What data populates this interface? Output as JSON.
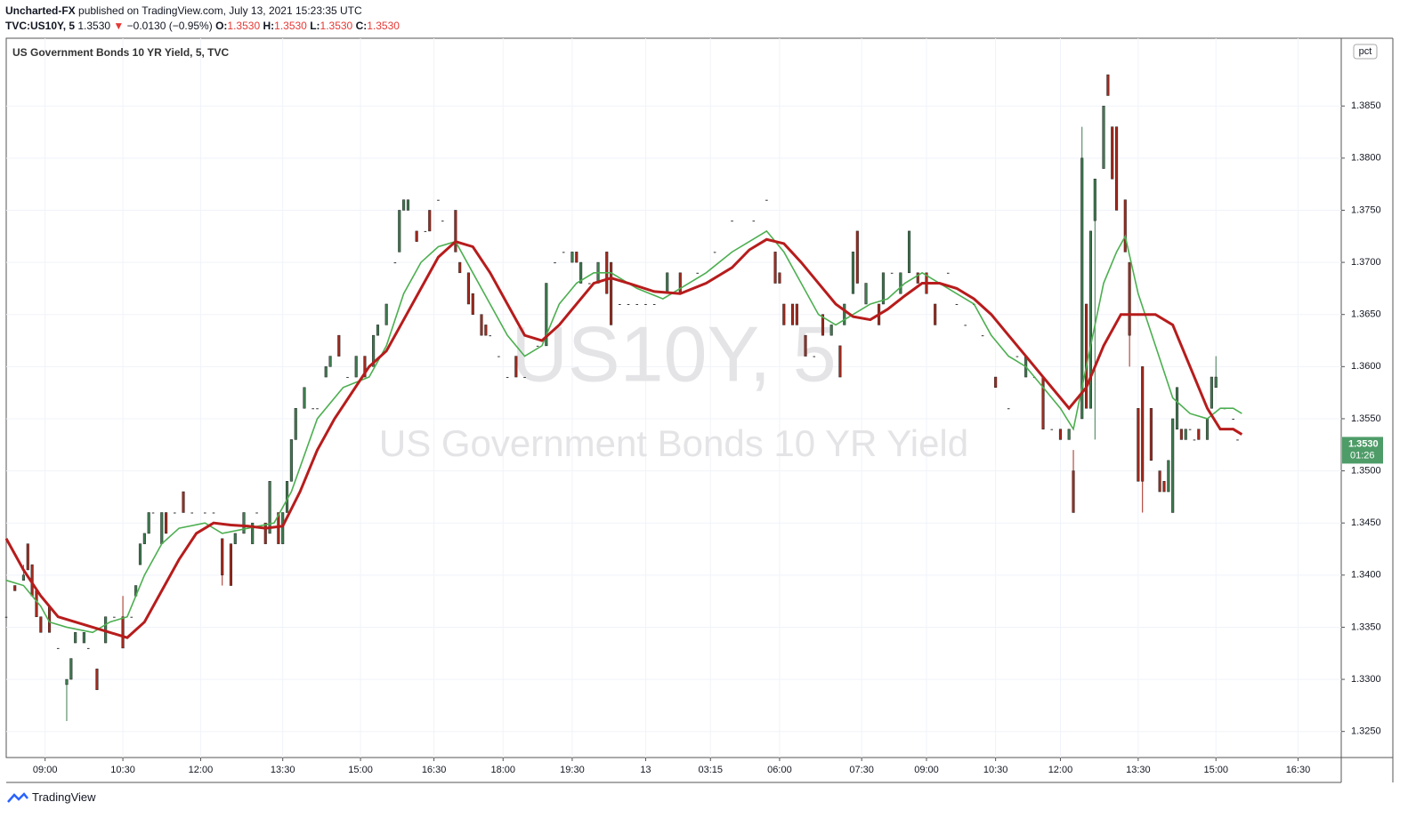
{
  "header": {
    "publisher": "Uncharted-FX",
    "published": "published on TradingView.com, July 13, 2021 15:23:35 UTC",
    "symbol": "TVC:US10Y, 5",
    "price": "1.3530",
    "arrow": "▼",
    "change": "−0.0130 (−0.95%)",
    "o_label": "O:",
    "o": "1.3530",
    "h_label": "H:",
    "h": "1.3530",
    "l_label": "L:",
    "l": "1.3530",
    "c_label": "C:",
    "c": "1.3530"
  },
  "footer": {
    "brand": "TradingView"
  },
  "chart_data": {
    "type": "candlestick",
    "legend": "US Government Bonds 10 YR Yield, 5, TVC",
    "watermark": "US10Y, 5",
    "watermark_sub": "US Government Bonds 10 YR Yield",
    "scale_mode": "pct",
    "up_color": "#3e7b50",
    "down_color": "#a3291c",
    "grid": true,
    "xlim": [
      0,
      309
    ],
    "ylim": [
      1.3225,
      1.3915
    ],
    "xticks": [
      {
        "value": 9,
        "label": "09:00"
      },
      {
        "value": 27,
        "label": "10:30"
      },
      {
        "value": 45,
        "label": "12:00"
      },
      {
        "value": 64,
        "label": "13:30"
      },
      {
        "value": 82,
        "label": "15:00"
      },
      {
        "value": 99,
        "label": "16:30"
      },
      {
        "value": 115,
        "label": "18:00"
      },
      {
        "value": 131,
        "label": "19:30"
      },
      {
        "value": 148,
        "label": "13"
      },
      {
        "value": 163,
        "label": "03:15"
      },
      {
        "value": 179,
        "label": "06:00"
      },
      {
        "value": 198,
        "label": "07:30"
      },
      {
        "value": 213,
        "label": "09:00"
      },
      {
        "value": 229,
        "label": "10:30"
      },
      {
        "value": 244,
        "label": "12:00"
      },
      {
        "value": 262,
        "label": "13:30"
      },
      {
        "value": 280,
        "label": "15:00"
      },
      {
        "value": 299,
        "label": "16:30"
      }
    ],
    "yticks": [
      {
        "value": 1.325,
        "label": "1.3250"
      },
      {
        "value": 1.33,
        "label": "1.3300"
      },
      {
        "value": 1.335,
        "label": "1.3350"
      },
      {
        "value": 1.34,
        "label": "1.3400"
      },
      {
        "value": 1.345,
        "label": "1.3450"
      },
      {
        "value": 1.35,
        "label": "1.3500"
      },
      {
        "value": 1.355,
        "label": "1.3550"
      },
      {
        "value": 1.36,
        "label": "1.3600"
      },
      {
        "value": 1.365,
        "label": "1.3650"
      },
      {
        "value": 1.37,
        "label": "1.3700"
      },
      {
        "value": 1.375,
        "label": "1.3750"
      },
      {
        "value": 1.38,
        "label": "1.3800"
      },
      {
        "value": 1.385,
        "label": "1.3850"
      }
    ],
    "last_price": {
      "value": 1.353,
      "label": "1.3530"
    },
    "countdown": "01:26",
    "candles": {
      "x": [
        0,
        2,
        4,
        5,
        6,
        7,
        8,
        10,
        12,
        14,
        15,
        16,
        18,
        19,
        21,
        23,
        25,
        27,
        29,
        30,
        31,
        32,
        33,
        34,
        36,
        37,
        39,
        41,
        43,
        46,
        48,
        50,
        52,
        53,
        55,
        57,
        58,
        60,
        61,
        63,
        64,
        65,
        66,
        67,
        69,
        71,
        72,
        74,
        75,
        77,
        79,
        81,
        83,
        85,
        86,
        88,
        90,
        91,
        92,
        93,
        95,
        97,
        98,
        100,
        101,
        104,
        105,
        107,
        108,
        110,
        111,
        112,
        114,
        116,
        118,
        120,
        123,
        125,
        127,
        129,
        131,
        132,
        133,
        135,
        137,
        139,
        140,
        142,
        144,
        146,
        148,
        150,
        153,
        156,
        160,
        164,
        168,
        173,
        176,
        178,
        179,
        180,
        182,
        183,
        185,
        187,
        189,
        191,
        193,
        194,
        196,
        197,
        199,
        202,
        203,
        205,
        207,
        209,
        211,
        213,
        215,
        218,
        220,
        222,
        224,
        226,
        229,
        232,
        234,
        236,
        238,
        240,
        242,
        244,
        246,
        247,
        249,
        250,
        251,
        252,
        254,
        255,
        256,
        257,
        259,
        260,
        262,
        263,
        265,
        267,
        268,
        269,
        270,
        271,
        272,
        273,
        274,
        275,
        276,
        278,
        279,
        280,
        282,
        284,
        285
      ],
      "open": [
        1.336,
        1.339,
        1.3395,
        1.343,
        1.341,
        1.3385,
        1.336,
        1.337,
        1.333,
        1.3295,
        1.33,
        1.3335,
        1.3335,
        1.333,
        1.331,
        1.3335,
        1.336,
        1.336,
        1.336,
        1.338,
        1.341,
        1.343,
        1.344,
        1.346,
        1.343,
        1.346,
        1.346,
        1.348,
        1.346,
        1.346,
        1.346,
        1.3435,
        1.343,
        1.343,
        1.344,
        1.343,
        1.346,
        1.345,
        1.344,
        1.346,
        1.343,
        1.346,
        1.349,
        1.353,
        1.356,
        1.356,
        1.356,
        1.359,
        1.36,
        1.363,
        1.359,
        1.359,
        1.361,
        1.36,
        1.363,
        1.364,
        1.37,
        1.371,
        1.375,
        1.375,
        1.373,
        1.373,
        1.375,
        1.376,
        1.374,
        1.375,
        1.37,
        1.369,
        1.367,
        1.365,
        1.364,
        1.363,
        1.361,
        1.359,
        1.361,
        1.359,
        1.362,
        1.362,
        1.37,
        1.371,
        1.37,
        1.371,
        1.368,
        1.368,
        1.368,
        1.371,
        1.37,
        1.366,
        1.366,
        1.366,
        1.366,
        1.366,
        1.367,
        1.369,
        1.369,
        1.371,
        1.374,
        1.374,
        1.376,
        1.371,
        1.369,
        1.366,
        1.366,
        1.366,
        1.363,
        1.361,
        1.365,
        1.363,
        1.362,
        1.364,
        1.367,
        1.373,
        1.366,
        1.366,
        1.366,
        1.369,
        1.367,
        1.369,
        1.369,
        1.369,
        1.366,
        1.369,
        1.366,
        1.364,
        1.366,
        1.363,
        1.359,
        1.356,
        1.361,
        1.359,
        1.359,
        1.359,
        1.354,
        1.354,
        1.353,
        1.35,
        1.355,
        1.366,
        1.356,
        1.374,
        1.379,
        1.388,
        1.383,
        1.383,
        1.376,
        1.37,
        1.356,
        1.36,
        1.356,
        1.35,
        1.349,
        1.348,
        1.346,
        1.354,
        1.354,
        1.353,
        1.354,
        1.353,
        1.354,
        1.353,
        1.356,
        1.358,
        1.356,
        1.355,
        1.353
      ],
      "high": [
        1.336,
        1.339,
        1.341,
        1.343,
        1.341,
        1.3385,
        1.336,
        1.337,
        1.333,
        1.33,
        1.332,
        1.3345,
        1.3345,
        1.333,
        1.331,
        1.336,
        1.336,
        1.338,
        1.336,
        1.339,
        1.343,
        1.344,
        1.346,
        1.346,
        1.346,
        1.346,
        1.346,
        1.348,
        1.346,
        1.346,
        1.346,
        1.3435,
        1.343,
        1.344,
        1.346,
        1.345,
        1.346,
        1.345,
        1.349,
        1.346,
        1.346,
        1.349,
        1.353,
        1.356,
        1.358,
        1.356,
        1.356,
        1.36,
        1.361,
        1.363,
        1.359,
        1.361,
        1.361,
        1.363,
        1.364,
        1.366,
        1.37,
        1.375,
        1.376,
        1.376,
        1.373,
        1.373,
        1.375,
        1.376,
        1.374,
        1.375,
        1.37,
        1.369,
        1.367,
        1.365,
        1.364,
        1.363,
        1.361,
        1.359,
        1.361,
        1.359,
        1.362,
        1.368,
        1.37,
        1.371,
        1.371,
        1.371,
        1.37,
        1.368,
        1.37,
        1.371,
        1.37,
        1.366,
        1.366,
        1.366,
        1.366,
        1.366,
        1.369,
        1.369,
        1.369,
        1.371,
        1.374,
        1.374,
        1.376,
        1.371,
        1.369,
        1.366,
        1.366,
        1.366,
        1.363,
        1.361,
        1.365,
        1.364,
        1.362,
        1.366,
        1.371,
        1.373,
        1.368,
        1.366,
        1.369,
        1.369,
        1.369,
        1.373,
        1.369,
        1.369,
        1.366,
        1.369,
        1.366,
        1.364,
        1.366,
        1.363,
        1.359,
        1.356,
        1.361,
        1.361,
        1.359,
        1.359,
        1.354,
        1.354,
        1.354,
        1.352,
        1.383,
        1.366,
        1.373,
        1.378,
        1.385,
        1.388,
        1.383,
        1.383,
        1.376,
        1.37,
        1.356,
        1.36,
        1.356,
        1.35,
        1.349,
        1.351,
        1.355,
        1.358,
        1.354,
        1.354,
        1.354,
        1.353,
        1.354,
        1.355,
        1.359,
        1.361,
        1.356,
        1.355,
        1.353
      ],
      "low": [
        1.336,
        1.3385,
        1.3395,
        1.3405,
        1.338,
        1.336,
        1.3345,
        1.3345,
        1.333,
        1.326,
        1.33,
        1.3335,
        1.3335,
        1.333,
        1.329,
        1.3335,
        1.336,
        1.333,
        1.336,
        1.338,
        1.341,
        1.343,
        1.344,
        1.346,
        1.343,
        1.344,
        1.346,
        1.346,
        1.346,
        1.346,
        1.346,
        1.339,
        1.339,
        1.343,
        1.344,
        1.343,
        1.346,
        1.343,
        1.344,
        1.343,
        1.343,
        1.346,
        1.349,
        1.353,
        1.356,
        1.356,
        1.356,
        1.359,
        1.36,
        1.361,
        1.359,
        1.359,
        1.359,
        1.36,
        1.363,
        1.364,
        1.37,
        1.371,
        1.375,
        1.375,
        1.372,
        1.373,
        1.373,
        1.376,
        1.374,
        1.371,
        1.369,
        1.366,
        1.365,
        1.363,
        1.363,
        1.363,
        1.361,
        1.359,
        1.359,
        1.359,
        1.362,
        1.362,
        1.37,
        1.371,
        1.37,
        1.37,
        1.368,
        1.368,
        1.368,
        1.367,
        1.364,
        1.366,
        1.366,
        1.366,
        1.366,
        1.366,
        1.367,
        1.367,
        1.369,
        1.371,
        1.374,
        1.374,
        1.376,
        1.368,
        1.368,
        1.364,
        1.364,
        1.364,
        1.361,
        1.361,
        1.363,
        1.363,
        1.359,
        1.364,
        1.367,
        1.368,
        1.366,
        1.364,
        1.366,
        1.369,
        1.367,
        1.369,
        1.368,
        1.367,
        1.364,
        1.369,
        1.366,
        1.364,
        1.366,
        1.363,
        1.358,
        1.356,
        1.361,
        1.359,
        1.359,
        1.354,
        1.354,
        1.353,
        1.353,
        1.346,
        1.355,
        1.356,
        1.356,
        1.353,
        1.379,
        1.386,
        1.378,
        1.375,
        1.371,
        1.36,
        1.349,
        1.346,
        1.351,
        1.348,
        1.348,
        1.348,
        1.346,
        1.354,
        1.353,
        1.353,
        1.354,
        1.353,
        1.353,
        1.353,
        1.356,
        1.358,
        1.356,
        1.355,
        1.353
      ],
      "close": [
        1.336,
        1.3385,
        1.34,
        1.3405,
        1.338,
        1.336,
        1.3345,
        1.3345,
        1.333,
        1.33,
        1.332,
        1.3345,
        1.3345,
        1.333,
        1.329,
        1.336,
        1.336,
        1.333,
        1.336,
        1.339,
        1.343,
        1.344,
        1.346,
        1.346,
        1.346,
        1.344,
        1.346,
        1.346,
        1.346,
        1.346,
        1.346,
        1.34,
        1.339,
        1.344,
        1.346,
        1.345,
        1.346,
        1.343,
        1.349,
        1.343,
        1.346,
        1.349,
        1.353,
        1.356,
        1.358,
        1.356,
        1.356,
        1.36,
        1.361,
        1.361,
        1.359,
        1.361,
        1.359,
        1.363,
        1.364,
        1.366,
        1.37,
        1.375,
        1.376,
        1.376,
        1.372,
        1.373,
        1.373,
        1.376,
        1.374,
        1.371,
        1.369,
        1.366,
        1.365,
        1.363,
        1.363,
        1.363,
        1.361,
        1.359,
        1.359,
        1.359,
        1.362,
        1.368,
        1.37,
        1.371,
        1.371,
        1.37,
        1.37,
        1.368,
        1.37,
        1.367,
        1.364,
        1.366,
        1.366,
        1.366,
        1.366,
        1.366,
        1.369,
        1.367,
        1.369,
        1.371,
        1.374,
        1.374,
        1.376,
        1.368,
        1.368,
        1.364,
        1.364,
        1.364,
        1.361,
        1.361,
        1.363,
        1.364,
        1.359,
        1.366,
        1.371,
        1.368,
        1.368,
        1.364,
        1.369,
        1.369,
        1.369,
        1.373,
        1.368,
        1.367,
        1.364,
        1.369,
        1.366,
        1.364,
        1.366,
        1.363,
        1.358,
        1.356,
        1.361,
        1.361,
        1.359,
        1.354,
        1.354,
        1.353,
        1.354,
        1.346,
        1.38,
        1.356,
        1.373,
        1.378,
        1.385,
        1.386,
        1.378,
        1.375,
        1.371,
        1.363,
        1.349,
        1.349,
        1.351,
        1.348,
        1.348,
        1.351,
        1.355,
        1.358,
        1.353,
        1.354,
        1.354,
        1.353,
        1.353,
        1.355,
        1.359,
        1.359,
        1.356,
        1.355,
        1.353
      ]
    },
    "series": [
      {
        "color": "#4caf50",
        "x": [
          0,
          4,
          8,
          10,
          14,
          20,
          24,
          28,
          32,
          36,
          40,
          46,
          50,
          56,
          62,
          66,
          72,
          78,
          84,
          88,
          92,
          96,
          100,
          104,
          108,
          112,
          116,
          120,
          124,
          128,
          132,
          136,
          140,
          146,
          152,
          156,
          162,
          168,
          174,
          176,
          180,
          184,
          188,
          192,
          196,
          200,
          204,
          208,
          212,
          216,
          220,
          224,
          228,
          232,
          236,
          240,
          244,
          247,
          250,
          254,
          257,
          259,
          262,
          266,
          270,
          274,
          278,
          281,
          284,
          286
        ],
        "values": [
          1.3395,
          1.339,
          1.337,
          1.3355,
          1.335,
          1.3345,
          1.3355,
          1.336,
          1.34,
          1.343,
          1.3445,
          1.345,
          1.344,
          1.3445,
          1.345,
          1.348,
          1.355,
          1.358,
          1.359,
          1.362,
          1.367,
          1.37,
          1.3715,
          1.372,
          1.369,
          1.366,
          1.363,
          1.361,
          1.362,
          1.366,
          1.368,
          1.369,
          1.369,
          1.3675,
          1.3665,
          1.3675,
          1.369,
          1.371,
          1.3725,
          1.373,
          1.371,
          1.368,
          1.365,
          1.364,
          1.365,
          1.366,
          1.3665,
          1.368,
          1.369,
          1.368,
          1.367,
          1.366,
          1.363,
          1.361,
          1.36,
          1.358,
          1.356,
          1.354,
          1.36,
          1.368,
          1.371,
          1.3725,
          1.367,
          1.362,
          1.357,
          1.3555,
          1.355,
          1.356,
          1.356,
          1.3555
        ]
      },
      {
        "color": "#b71c1c",
        "x": [
          0,
          4,
          8,
          12,
          16,
          20,
          24,
          28,
          32,
          36,
          40,
          44,
          48,
          52,
          56,
          60,
          64,
          68,
          72,
          76,
          80,
          84,
          88,
          92,
          96,
          100,
          104,
          108,
          112,
          116,
          120,
          124,
          128,
          132,
          136,
          140,
          144,
          150,
          156,
          162,
          168,
          172,
          176,
          180,
          184,
          188,
          192,
          196,
          200,
          204,
          208,
          212,
          216,
          220,
          224,
          228,
          232,
          236,
          240,
          244,
          246,
          250,
          254,
          258,
          262,
          266,
          270,
          274,
          278,
          281,
          284,
          286
        ],
        "values": [
          1.3435,
          1.3405,
          1.338,
          1.336,
          1.3355,
          1.335,
          1.3345,
          1.334,
          1.3355,
          1.3385,
          1.3415,
          1.344,
          1.345,
          1.3448,
          1.3447,
          1.3445,
          1.3447,
          1.348,
          1.352,
          1.355,
          1.3575,
          1.36,
          1.3615,
          1.3645,
          1.3675,
          1.3705,
          1.372,
          1.3715,
          1.369,
          1.366,
          1.363,
          1.3625,
          1.364,
          1.366,
          1.368,
          1.3685,
          1.368,
          1.3672,
          1.367,
          1.368,
          1.3695,
          1.3712,
          1.3722,
          1.3718,
          1.37,
          1.368,
          1.366,
          1.3648,
          1.3645,
          1.3655,
          1.3668,
          1.368,
          1.368,
          1.3675,
          1.3665,
          1.365,
          1.363,
          1.361,
          1.359,
          1.357,
          1.356,
          1.358,
          1.362,
          1.365,
          1.365,
          1.365,
          1.364,
          1.36,
          1.356,
          1.354,
          1.354,
          1.3535
        ]
      }
    ]
  }
}
